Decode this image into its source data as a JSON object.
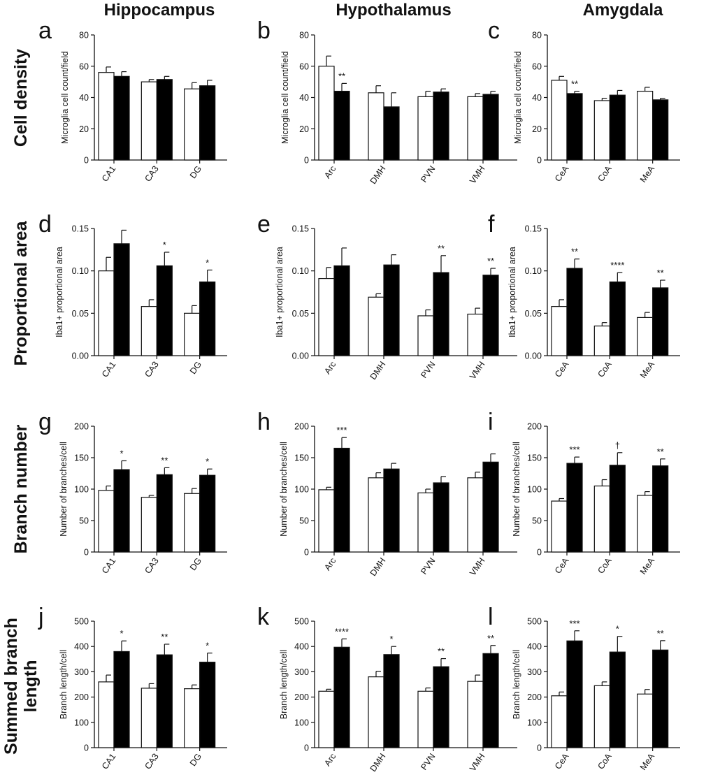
{
  "column_titles": [
    "Hippocampus",
    "Hypothalamus",
    "Amygdala"
  ],
  "row_titles": [
    [
      "Cell density"
    ],
    [
      "Proportional area"
    ],
    [
      "Branch number"
    ],
    [
      "Summed branch",
      "length"
    ]
  ],
  "colors": {
    "control_bar": "#ffffff",
    "treated_bar": "#000000",
    "axis": "#111111"
  },
  "chart_data": [
    {
      "type": "bar",
      "panel": "a",
      "ylabel": "Microglia cell count/field",
      "ylim": [
        0,
        80
      ],
      "yticks": [
        "0",
        "20",
        "40",
        "60",
        "80"
      ],
      "categories": [
        "CA1",
        "CA3",
        "DG"
      ],
      "series": [
        {
          "values": [
            56,
            50,
            45.5
          ],
          "errors": [
            3.5,
            1.5,
            4
          ]
        },
        {
          "values": [
            53.5,
            51.5,
            47.5
          ],
          "errors": [
            3,
            2,
            3.5
          ]
        }
      ],
      "annotations": [
        "",
        "",
        ""
      ]
    },
    {
      "type": "bar",
      "panel": "b",
      "ylabel": "Microglia cell count/field",
      "ylim": [
        0,
        80
      ],
      "yticks": [
        "0",
        "20",
        "40",
        "60",
        "80"
      ],
      "categories": [
        "Arc",
        "DMH",
        "PVN",
        "VMH"
      ],
      "series": [
        {
          "values": [
            60,
            43,
            40.5,
            40.5
          ],
          "errors": [
            6.5,
            4.5,
            3.5,
            2
          ]
        },
        {
          "values": [
            44,
            34,
            43.5,
            42
          ],
          "errors": [
            5,
            9,
            2,
            2
          ]
        }
      ],
      "annotations": [
        "**",
        "",
        "",
        ""
      ]
    },
    {
      "type": "bar",
      "panel": "c",
      "ylabel": "Microglia cell count/field",
      "ylim": [
        0,
        80
      ],
      "yticks": [
        "0",
        "20",
        "40",
        "60",
        "80"
      ],
      "categories": [
        "CeA",
        "CoA",
        "MeA"
      ],
      "series": [
        {
          "values": [
            51,
            38,
            44
          ],
          "errors": [
            2.5,
            1.5,
            2.5
          ]
        },
        {
          "values": [
            42.5,
            41.5,
            38.5
          ],
          "errors": [
            1.5,
            3,
            1
          ]
        }
      ],
      "annotations": [
        "**",
        "",
        ""
      ]
    },
    {
      "type": "bar",
      "panel": "d",
      "ylabel": "Iba1+ proportional area",
      "ylim": [
        0,
        0.15
      ],
      "yticks": [
        "0.00",
        "0.05",
        "0.10",
        "0.15"
      ],
      "categories": [
        "CA1",
        "CA3",
        "DG"
      ],
      "series": [
        {
          "values": [
            0.1,
            0.058,
            0.05
          ],
          "errors": [
            0.016,
            0.008,
            0.009
          ]
        },
        {
          "values": [
            0.132,
            0.106,
            0.087
          ],
          "errors": [
            0.016,
            0.016,
            0.014
          ]
        }
      ],
      "annotations": [
        "",
        "*",
        "*"
      ]
    },
    {
      "type": "bar",
      "panel": "e",
      "ylabel": "Iba1+ proportional area",
      "ylim": [
        0,
        0.15
      ],
      "yticks": [
        "0.00",
        "0.05",
        "0.10",
        "0.15"
      ],
      "categories": [
        "Arc",
        "DMH",
        "PVN",
        "VMH"
      ],
      "series": [
        {
          "values": [
            0.091,
            0.069,
            0.047,
            0.049
          ],
          "errors": [
            0.013,
            0.004,
            0.007,
            0.007
          ]
        },
        {
          "values": [
            0.106,
            0.107,
            0.098,
            0.095
          ],
          "errors": [
            0.021,
            0.012,
            0.02,
            0.008
          ]
        }
      ],
      "annotations": [
        "",
        "",
        "**",
        "**"
      ]
    },
    {
      "type": "bar",
      "panel": "f",
      "ylabel": "Iba1+ proportional area",
      "ylim": [
        0,
        0.15
      ],
      "yticks": [
        "0.00",
        "0.05",
        "0.10",
        "0.15"
      ],
      "categories": [
        "CeA",
        "CoA",
        "MeA"
      ],
      "series": [
        {
          "values": [
            0.058,
            0.035,
            0.045
          ],
          "errors": [
            0.008,
            0.004,
            0.006
          ]
        },
        {
          "values": [
            0.103,
            0.087,
            0.08
          ],
          "errors": [
            0.011,
            0.011,
            0.009
          ]
        }
      ],
      "annotations": [
        "**",
        "****",
        "**"
      ]
    },
    {
      "type": "bar",
      "panel": "g",
      "ylabel": "Number of branches/cell",
      "ylim": [
        0,
        200
      ],
      "yticks": [
        "0",
        "50",
        "100",
        "150",
        "200"
      ],
      "categories": [
        "CA1",
        "CA3",
        "DG"
      ],
      "series": [
        {
          "values": [
            98,
            87,
            93
          ],
          "errors": [
            7,
            3,
            8
          ]
        },
        {
          "values": [
            131,
            123,
            122
          ],
          "errors": [
            14,
            11,
            10
          ]
        }
      ],
      "annotations": [
        "*",
        "**",
        "*"
      ]
    },
    {
      "type": "bar",
      "panel": "h",
      "ylabel": "Number of branches/cell",
      "ylim": [
        0,
        200
      ],
      "yticks": [
        "0",
        "50",
        "100",
        "150",
        "200"
      ],
      "categories": [
        "Arc",
        "DMH",
        "PVN",
        "VMH"
      ],
      "series": [
        {
          "values": [
            99,
            118,
            94,
            118
          ],
          "errors": [
            4,
            8,
            6,
            9
          ]
        },
        {
          "values": [
            165,
            132,
            110,
            143
          ],
          "errors": [
            17,
            9,
            10,
            13
          ]
        }
      ],
      "annotations": [
        "***",
        "",
        "",
        ""
      ]
    },
    {
      "type": "bar",
      "panel": "i",
      "ylabel": "Number of branches/cell",
      "ylim": [
        0,
        200
      ],
      "yticks": [
        "0",
        "50",
        "100",
        "150",
        "200"
      ],
      "categories": [
        "CeA",
        "CoA",
        "MeA"
      ],
      "series": [
        {
          "values": [
            81,
            105,
            90
          ],
          "errors": [
            4,
            10,
            6
          ]
        },
        {
          "values": [
            141,
            138,
            137
          ],
          "errors": [
            10,
            20,
            11
          ]
        }
      ],
      "annotations": [
        "***",
        "†",
        "**"
      ]
    },
    {
      "type": "bar",
      "panel": "j",
      "ylabel": "Branch length/cell",
      "ylim": [
        0,
        500
      ],
      "yticks": [
        "0",
        "100",
        "200",
        "300",
        "400",
        "500"
      ],
      "categories": [
        "CA1",
        "CA3",
        "DG"
      ],
      "series": [
        {
          "values": [
            260,
            235,
            233
          ],
          "errors": [
            27,
            18,
            15
          ]
        },
        {
          "values": [
            380,
            367,
            338
          ],
          "errors": [
            42,
            42,
            36
          ]
        }
      ],
      "annotations": [
        "*",
        "**",
        "*"
      ]
    },
    {
      "type": "bar",
      "panel": "k",
      "ylabel": "Branch length/cell",
      "ylim": [
        0,
        500
      ],
      "yticks": [
        "0",
        "100",
        "200",
        "300",
        "400",
        "500"
      ],
      "categories": [
        "Arc",
        "DMH",
        "PVN",
        "VMH"
      ],
      "series": [
        {
          "values": [
            223,
            280,
            223,
            262
          ],
          "errors": [
            8,
            22,
            13,
            25
          ]
        },
        {
          "values": [
            397,
            368,
            320,
            372
          ],
          "errors": [
            33,
            32,
            32,
            32
          ]
        }
      ],
      "annotations": [
        "****",
        "*",
        "**",
        "**"
      ]
    },
    {
      "type": "bar",
      "panel": "l",
      "ylabel": "Branch length/cell",
      "ylim": [
        0,
        500
      ],
      "yticks": [
        "0",
        "100",
        "200",
        "300",
        "400",
        "500"
      ],
      "categories": [
        "CeA",
        "CoA",
        "MeA"
      ],
      "series": [
        {
          "values": [
            205,
            245,
            212
          ],
          "errors": [
            15,
            15,
            18
          ]
        },
        {
          "values": [
            422,
            378,
            386
          ],
          "errors": [
            40,
            62,
            37
          ]
        }
      ],
      "annotations": [
        "***",
        "*",
        "**"
      ]
    }
  ]
}
